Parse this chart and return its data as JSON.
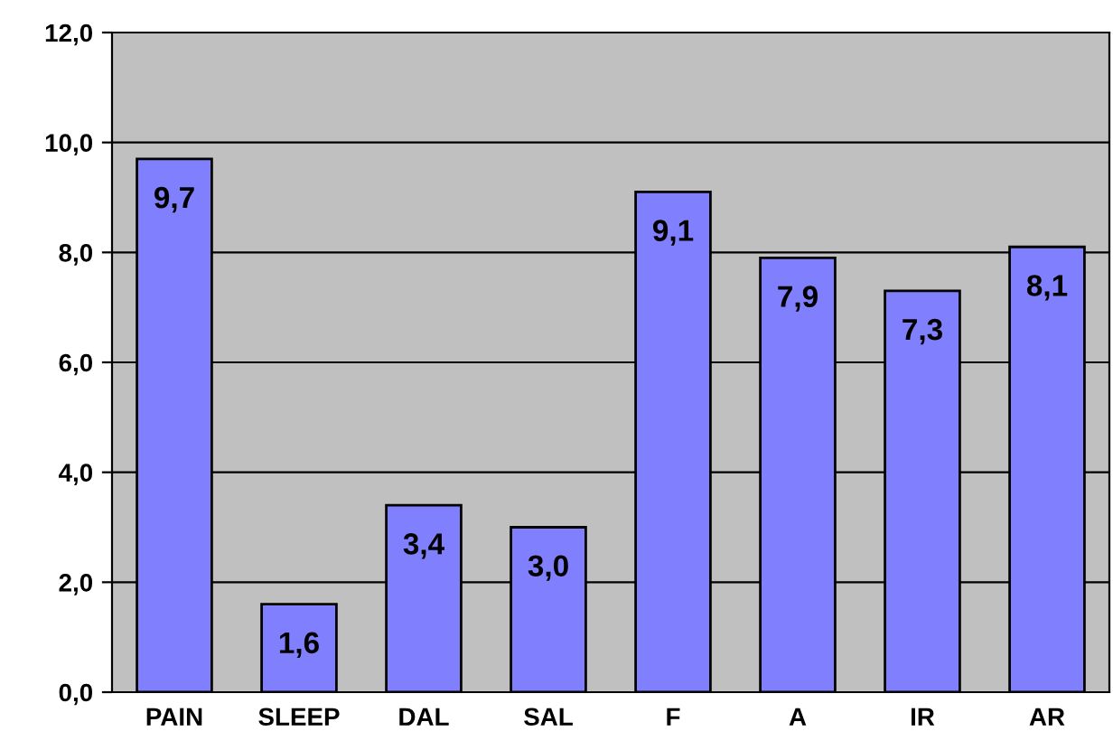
{
  "chart_data": {
    "type": "bar",
    "categories": [
      "PAIN",
      "SLEEP",
      "DAL",
      "SAL",
      "F",
      "A",
      "IR",
      "AR"
    ],
    "values": [
      9.7,
      1.6,
      3.4,
      3.0,
      9.1,
      7.9,
      7.3,
      8.1
    ],
    "value_labels": [
      "9,7",
      "1,6",
      "3,4",
      "3,0",
      "9,1",
      "7,9",
      "7,3",
      "8,1"
    ],
    "color": "#8080ff",
    "ylim": [
      0,
      12
    ],
    "yticks": [
      {
        "value": 0,
        "label": "0,0"
      },
      {
        "value": 2,
        "label": "2,0"
      },
      {
        "value": 4,
        "label": "4,0"
      },
      {
        "value": 6,
        "label": "6,0"
      },
      {
        "value": 8,
        "label": "8,0"
      },
      {
        "value": 10,
        "label": "10,0"
      },
      {
        "value": 12,
        "label": "12,0"
      }
    ],
    "grid": "y"
  }
}
